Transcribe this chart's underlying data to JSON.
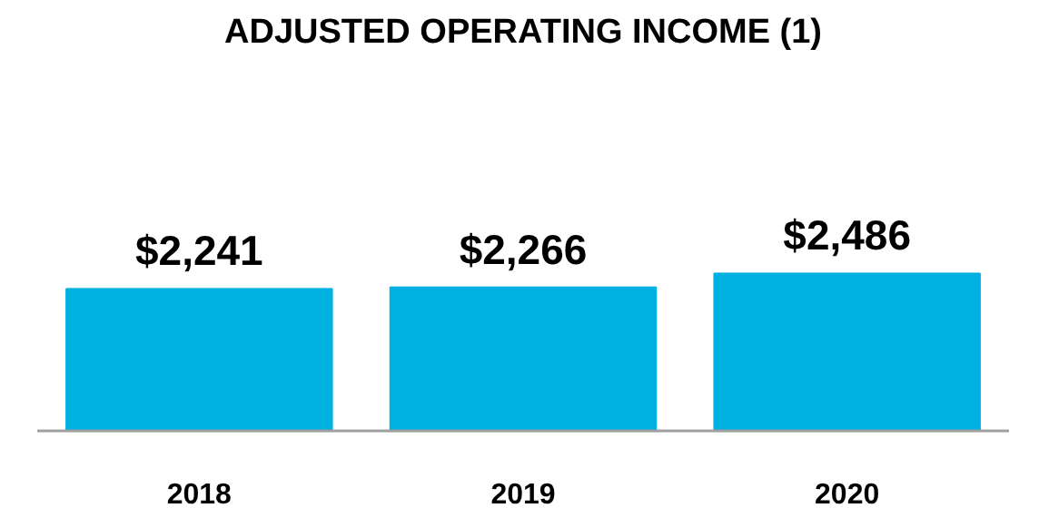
{
  "chart_data": {
    "type": "bar",
    "title": "ADJUSTED OPERATING INCOME (1)",
    "categories": [
      "2018",
      "2019",
      "2020"
    ],
    "values": [
      2241,
      2266,
      2486
    ],
    "color": "#00b0e0",
    "value_labels": [
      "$2,241",
      "$2,266",
      "$2,486"
    ],
    "tick_labels": "x"
  }
}
